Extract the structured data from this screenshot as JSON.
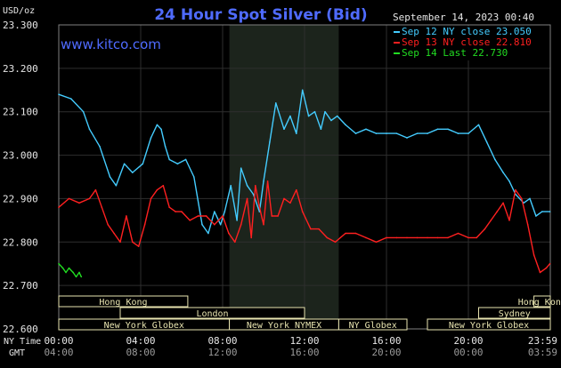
{
  "header": {
    "title": "24 Hour Spot Silver (Bid)",
    "unit": "USD/oz",
    "timestamp": "September 14, 2023 00:40",
    "watermark": "www.kitco.com"
  },
  "legend": [
    {
      "label": "Sep 12 NY close 23.050",
      "color": "#44ccff"
    },
    {
      "label": "Sep 13 NY close 22.810",
      "color": "#ff2020"
    },
    {
      "label": "Sep 14 Last 22.730",
      "color": "#22dd22"
    }
  ],
  "x_row_labels": {
    "ny_time": "NY Time",
    "gmt": "GMT"
  },
  "chart_data": {
    "type": "line",
    "title": "24 Hour Spot Silver (Bid)",
    "ylabel": "USD/oz",
    "ylim": [
      22.6,
      23.3
    ],
    "yticks": [
      "23.300",
      "23.200",
      "23.100",
      "23.000",
      "22.900",
      "22.800",
      "22.700",
      "22.600"
    ],
    "xlim_hours": [
      0,
      24
    ],
    "x_ticks_ny": [
      "00:00",
      "04:00",
      "08:00",
      "12:00",
      "16:00",
      "20:00",
      "23:59"
    ],
    "x_ticks_gmt": [
      "04:00",
      "08:00",
      "12:00",
      "16:00",
      "20:00",
      "00:00",
      "03:59"
    ],
    "grid": true,
    "shaded_hours": [
      8.33,
      13.67
    ],
    "series": [
      {
        "name": "Sep 12 NY close 23.050",
        "color": "#44ccff",
        "x": [
          0,
          0.6,
          1.2,
          1.5,
          2.0,
          2.5,
          2.8,
          3.2,
          3.6,
          4.1,
          4.5,
          4.8,
          5.0,
          5.2,
          5.4,
          5.8,
          6.2,
          6.6,
          7.0,
          7.3,
          7.6,
          7.9,
          8.1,
          8.4,
          8.7,
          8.9,
          9.2,
          9.5,
          9.8,
          10.0,
          10.3,
          10.6,
          11.0,
          11.3,
          11.6,
          11.9,
          12.2,
          12.5,
          12.8,
          13.0,
          13.3,
          13.6,
          14.0,
          14.5,
          15.0,
          15.5,
          16.0,
          16.5,
          17.0,
          17.5,
          18.0,
          18.5,
          19.0,
          19.5,
          20.0,
          20.5,
          20.9,
          21.3,
          21.7,
          22.0,
          22.3,
          22.7,
          23.0,
          23.3,
          23.6,
          23.98
        ],
        "values": [
          23.14,
          23.13,
          23.1,
          23.06,
          23.02,
          22.95,
          22.93,
          22.98,
          22.96,
          22.98,
          23.04,
          23.07,
          23.06,
          23.02,
          22.99,
          22.98,
          22.99,
          22.95,
          22.84,
          22.82,
          22.87,
          22.84,
          22.87,
          22.93,
          22.85,
          22.97,
          22.93,
          22.91,
          22.87,
          22.94,
          23.03,
          23.12,
          23.06,
          23.09,
          23.05,
          23.15,
          23.09,
          23.1,
          23.06,
          23.1,
          23.08,
          23.09,
          23.07,
          23.05,
          23.06,
          23.05,
          23.05,
          23.05,
          23.04,
          23.05,
          23.05,
          23.06,
          23.06,
          23.05,
          23.05,
          23.07,
          23.03,
          22.99,
          22.96,
          22.94,
          22.91,
          22.89,
          22.9,
          22.86,
          22.87,
          22.87
        ]
      },
      {
        "name": "Sep 13 NY close 22.810",
        "color": "#ff2020",
        "x": [
          0,
          0.5,
          1.0,
          1.5,
          1.8,
          2.1,
          2.4,
          2.7,
          3.0,
          3.3,
          3.6,
          3.9,
          4.2,
          4.5,
          4.8,
          5.1,
          5.4,
          5.7,
          6.0,
          6.4,
          6.8,
          7.2,
          7.6,
          8.0,
          8.3,
          8.6,
          8.9,
          9.2,
          9.4,
          9.6,
          9.8,
          10.0,
          10.2,
          10.4,
          10.7,
          11.0,
          11.3,
          11.6,
          11.9,
          12.3,
          12.7,
          13.1,
          13.5,
          14.0,
          14.5,
          15.0,
          15.5,
          16.0,
          16.5,
          17.0,
          17.5,
          18.0,
          18.5,
          19.0,
          19.5,
          20.0,
          20.4,
          20.8,
          21.1,
          21.4,
          21.7,
          22.0,
          22.3,
          22.6,
          22.9,
          23.2,
          23.5,
          23.8,
          23.98
        ],
        "values": [
          22.88,
          22.9,
          22.89,
          22.9,
          22.92,
          22.88,
          22.84,
          22.82,
          22.8,
          22.86,
          22.8,
          22.79,
          22.84,
          22.9,
          22.92,
          22.93,
          22.88,
          22.87,
          22.87,
          22.85,
          22.86,
          22.86,
          22.84,
          22.86,
          22.82,
          22.8,
          22.84,
          22.9,
          22.81,
          22.93,
          22.88,
          22.84,
          22.94,
          22.86,
          22.86,
          22.9,
          22.89,
          22.92,
          22.87,
          22.83,
          22.83,
          22.81,
          22.8,
          22.82,
          22.82,
          22.81,
          22.8,
          22.81,
          22.81,
          22.81,
          22.81,
          22.81,
          22.81,
          22.81,
          22.82,
          22.81,
          22.81,
          22.83,
          22.85,
          22.87,
          22.89,
          22.85,
          22.92,
          22.9,
          22.84,
          22.77,
          22.73,
          22.74,
          22.75
        ]
      },
      {
        "name": "Sep 14 Last 22.730",
        "color": "#22dd22",
        "x": [
          0,
          0.2,
          0.35,
          0.5,
          0.7,
          0.85,
          1.0,
          1.1
        ],
        "values": [
          22.75,
          22.74,
          22.73,
          22.74,
          22.73,
          22.72,
          22.73,
          22.72
        ]
      }
    ]
  },
  "sessions": [
    {
      "label": "Hong Kong",
      "start": 0,
      "end": 6.3,
      "row": 0
    },
    {
      "label": "Hong Kong",
      "start": 23.2,
      "end": 24,
      "row": 0
    },
    {
      "label": "London",
      "start": 3.0,
      "end": 12.0,
      "row": 1
    },
    {
      "label": "Sydney",
      "start": 20.5,
      "end": 24,
      "row": 1
    },
    {
      "label": "New York Globex",
      "start": 0,
      "end": 8.33,
      "row": 2
    },
    {
      "label": "New York NYMEX",
      "start": 8.33,
      "end": 13.67,
      "row": 2
    },
    {
      "label": "NY Globex",
      "start": 13.67,
      "end": 17.0,
      "row": 2
    },
    {
      "label": "New York Globex",
      "start": 18.0,
      "end": 24,
      "row": 2
    }
  ],
  "colors": {
    "background": "#000000",
    "grid": "#2e2e2e",
    "border": "#808080",
    "shade": "#1c241c",
    "title": "#4f6bff",
    "text": "#e6e6e6",
    "session_fill": "#000000",
    "session_border": "#e8e4b0",
    "session_text": "#e8e4b0"
  }
}
